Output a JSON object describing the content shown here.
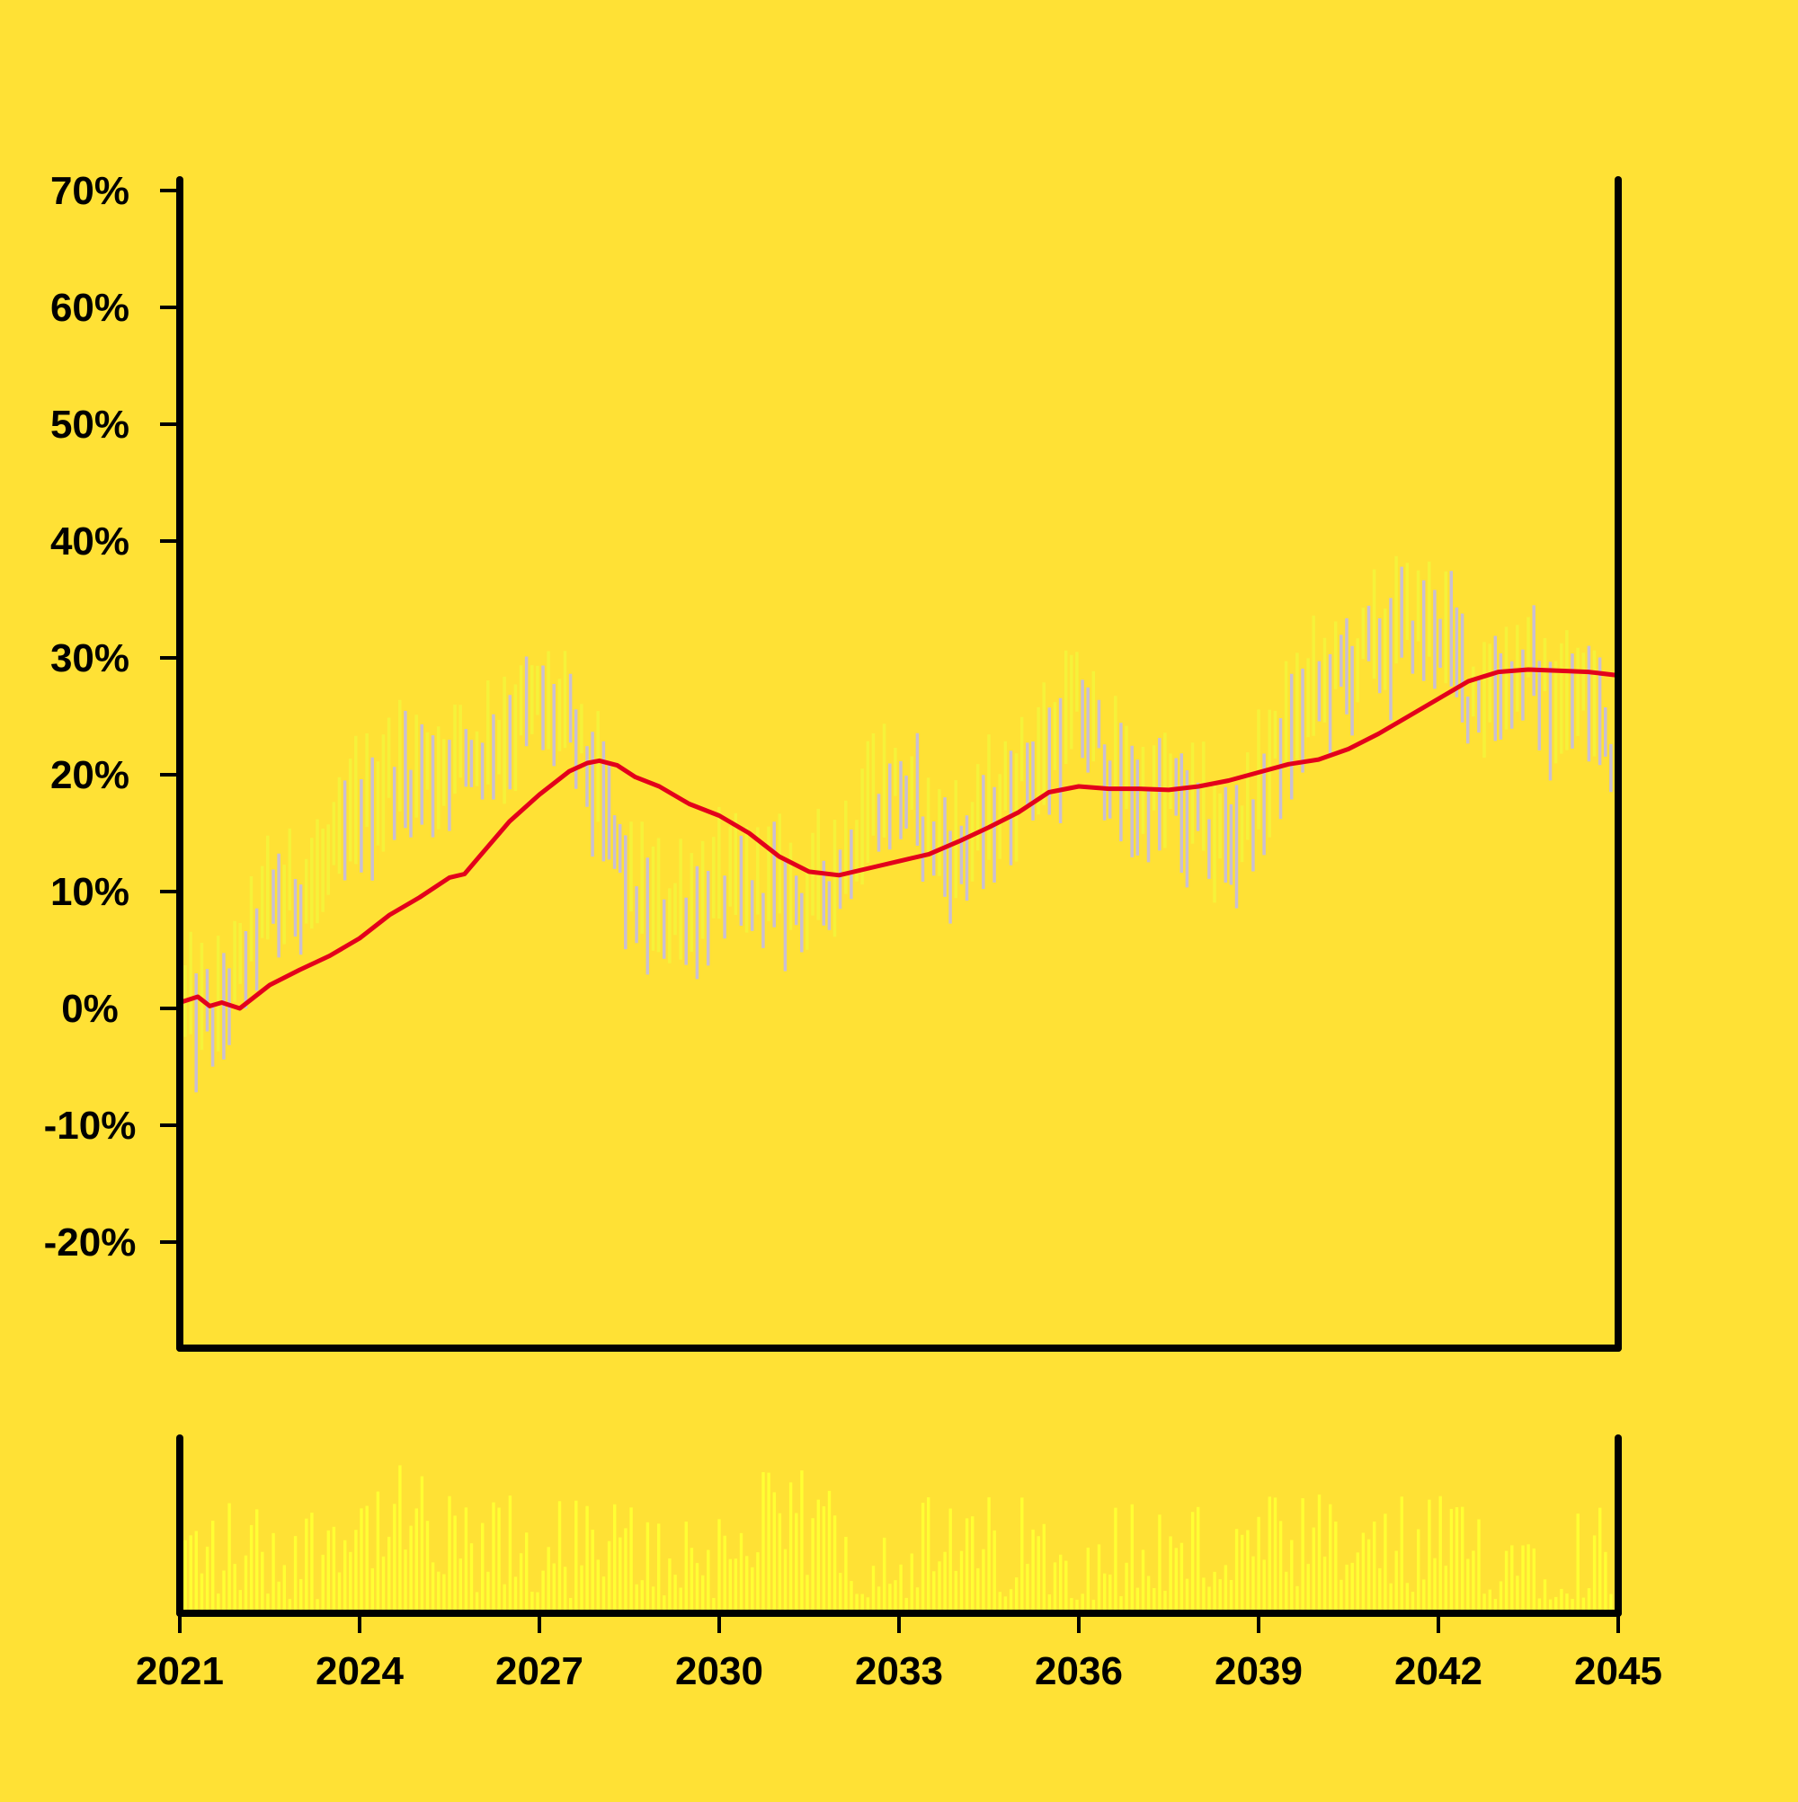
{
  "colors": {
    "background": "#FFE135",
    "axis": "#000000",
    "bar_up": "#F5F23A",
    "bar_down": "#C9BFD3",
    "moving_average": "#E3001B",
    "volume": "#FFFF33"
  },
  "chart_data": {
    "type": "ohlc",
    "title": "",
    "xlabel": "",
    "ylabel": "",
    "ylim": [
      -29,
      71
    ],
    "xlim": [
      2021,
      2045
    ],
    "grid": false,
    "y_ticks": [
      "70%",
      "60%",
      "50%",
      "40%",
      "30%",
      "20%",
      "10%",
      "0%",
      "-10%",
      "-20%"
    ],
    "y_tick_values": [
      70,
      60,
      50,
      40,
      30,
      20,
      10,
      0,
      -10,
      -20
    ],
    "x_ticks": [
      "2021",
      "2024",
      "2027",
      "2030",
      "2033",
      "2036",
      "2039",
      "2042",
      "2045"
    ],
    "x_tick_values": [
      2021,
      2024,
      2027,
      2030,
      2033,
      2036,
      2039,
      2042,
      2045
    ],
    "price_anchors": {
      "x": [
        2021.0,
        2021.6,
        2022.0,
        2022.5,
        2023.0,
        2023.5,
        2024.0,
        2024.5,
        2025.0,
        2025.5,
        2026.0,
        2026.5,
        2027.0,
        2027.5,
        2028.0,
        2028.5,
        2029.0,
        2029.5,
        2030.0,
        2030.5,
        2031.0,
        2031.5,
        2032.0,
        2032.5,
        2033.0,
        2033.5,
        2034.0,
        2034.5,
        2035.0,
        2035.5,
        2036.0,
        2036.5,
        2037.0,
        2037.5,
        2038.0,
        2038.5,
        2039.0,
        2039.5,
        2040.0,
        2040.5,
        2041.0,
        2041.5,
        2042.0,
        2042.5,
        2043.0,
        2043.5,
        2044.0,
        2044.5,
        2045.0
      ],
      "y": [
        0,
        -1,
        3,
        9,
        10,
        12,
        17,
        20,
        20,
        21,
        22,
        24,
        26,
        24,
        18,
        10,
        8,
        9,
        10,
        10,
        10,
        9,
        12,
        18,
        19,
        15,
        13,
        16,
        20,
        22,
        26,
        21,
        18,
        18,
        16,
        14,
        18,
        24,
        27,
        29,
        31,
        33,
        33,
        27,
        28,
        29,
        26,
        27,
        21
      ]
    },
    "moving_average": {
      "x": [
        2021.0,
        2021.3,
        2021.5,
        2021.7,
        2022.0,
        2022.5,
        2023.0,
        2023.5,
        2024.0,
        2024.5,
        2025.0,
        2025.5,
        2025.75,
        2026.0,
        2026.5,
        2027.0,
        2027.5,
        2027.8,
        2028.0,
        2028.3,
        2028.6,
        2029.0,
        2029.5,
        2030.0,
        2030.5,
        2031.0,
        2031.5,
        2032.0,
        2032.5,
        2033.0,
        2033.5,
        2034.0,
        2034.5,
        2035.0,
        2035.5,
        2036.0,
        2036.5,
        2037.0,
        2037.5,
        2038.0,
        2038.5,
        2039.0,
        2039.5,
        2040.0,
        2040.5,
        2041.0,
        2041.5,
        2042.0,
        2042.5,
        2043.0,
        2043.5,
        2044.0,
        2044.5,
        2045.0
      ],
      "y": [
        0.5,
        1.0,
        0.2,
        0.5,
        0.0,
        2.0,
        3.3,
        4.5,
        6.0,
        8.0,
        9.5,
        11.2,
        11.5,
        13.0,
        16.0,
        18.3,
        20.3,
        21.0,
        21.2,
        20.8,
        19.8,
        19.0,
        17.5,
        16.5,
        15.0,
        13.0,
        11.7,
        11.4,
        12.0,
        12.6,
        13.2,
        14.3,
        15.5,
        16.8,
        18.5,
        19.0,
        18.8,
        18.8,
        18.7,
        19.0,
        19.5,
        20.2,
        20.9,
        21.3,
        22.2,
        23.5,
        25.0,
        26.5,
        28.0,
        28.8,
        29.0,
        28.9,
        28.8,
        28.5
      ]
    }
  }
}
